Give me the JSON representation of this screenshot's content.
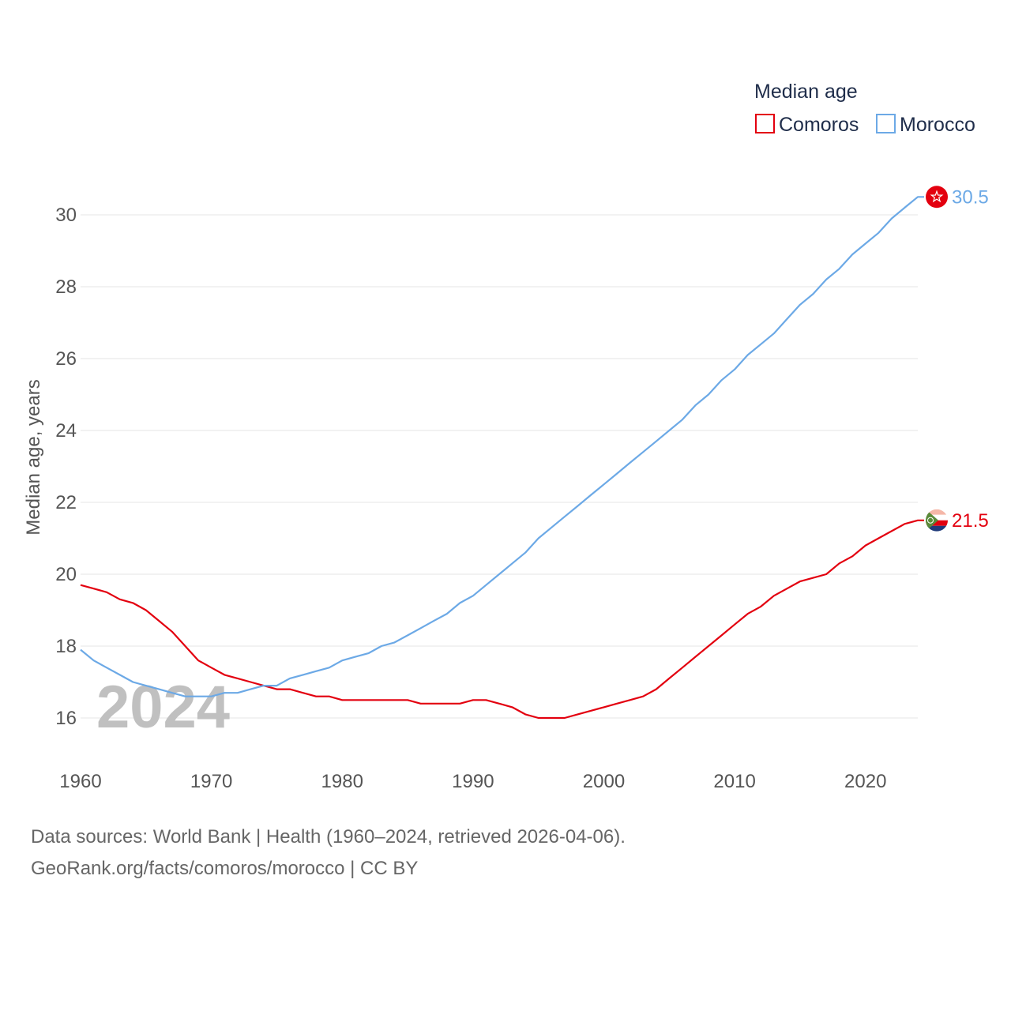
{
  "chart_data": {
    "type": "line",
    "legend_title": "Median age",
    "ylabel": "Median age, years",
    "xlabel": "",
    "xlim": [
      1960,
      2024
    ],
    "ylim": [
      15.2,
      30.9
    ],
    "x_ticks": [
      1960,
      1970,
      1980,
      1990,
      2000,
      2010,
      2020
    ],
    "y_ticks": [
      16,
      18,
      20,
      22,
      24,
      26,
      28,
      30
    ],
    "current_year": "2024",
    "grid": true,
    "legend_position": "top-right",
    "series": [
      {
        "name": "Comoros",
        "color": "#e3000f",
        "flag_icon": "comoros-flag-icon",
        "end_label": "21.5",
        "x": [
          1960,
          1961,
          1962,
          1963,
          1964,
          1965,
          1966,
          1967,
          1968,
          1969,
          1970,
          1971,
          1972,
          1973,
          1974,
          1975,
          1976,
          1977,
          1978,
          1979,
          1980,
          1981,
          1982,
          1983,
          1984,
          1985,
          1986,
          1987,
          1988,
          1989,
          1990,
          1991,
          1992,
          1993,
          1994,
          1995,
          1996,
          1997,
          1998,
          1999,
          2000,
          2001,
          2002,
          2003,
          2004,
          2005,
          2006,
          2007,
          2008,
          2009,
          2010,
          2011,
          2012,
          2013,
          2014,
          2015,
          2016,
          2017,
          2018,
          2019,
          2020,
          2021,
          2022,
          2023,
          2024
        ],
        "values": [
          19.7,
          19.6,
          19.5,
          19.3,
          19.2,
          19.0,
          18.7,
          18.4,
          18.0,
          17.6,
          17.4,
          17.2,
          17.1,
          17.0,
          16.9,
          16.8,
          16.8,
          16.7,
          16.6,
          16.6,
          16.5,
          16.5,
          16.5,
          16.5,
          16.5,
          16.5,
          16.4,
          16.4,
          16.4,
          16.4,
          16.5,
          16.5,
          16.4,
          16.3,
          16.1,
          16.0,
          16.0,
          16.0,
          16.1,
          16.2,
          16.3,
          16.4,
          16.5,
          16.6,
          16.8,
          17.1,
          17.4,
          17.7,
          18.0,
          18.3,
          18.6,
          18.9,
          19.1,
          19.4,
          19.6,
          19.8,
          19.9,
          20.0,
          20.3,
          20.5,
          20.8,
          21.0,
          21.2,
          21.4,
          21.5
        ]
      },
      {
        "name": "Morocco",
        "color": "#6ca9e6",
        "flag_icon": "morocco-flag-icon",
        "end_label": "30.5",
        "x": [
          1960,
          1961,
          1962,
          1963,
          1964,
          1965,
          1966,
          1967,
          1968,
          1969,
          1970,
          1971,
          1972,
          1973,
          1974,
          1975,
          1976,
          1977,
          1978,
          1979,
          1980,
          1981,
          1982,
          1983,
          1984,
          1985,
          1986,
          1987,
          1988,
          1989,
          1990,
          1991,
          1992,
          1993,
          1994,
          1995,
          1996,
          1997,
          1998,
          1999,
          2000,
          2001,
          2002,
          2003,
          2004,
          2005,
          2006,
          2007,
          2008,
          2009,
          2010,
          2011,
          2012,
          2013,
          2014,
          2015,
          2016,
          2017,
          2018,
          2019,
          2020,
          2021,
          2022,
          2023,
          2024
        ],
        "values": [
          17.9,
          17.6,
          17.4,
          17.2,
          17.0,
          16.9,
          16.8,
          16.7,
          16.6,
          16.6,
          16.6,
          16.7,
          16.7,
          16.8,
          16.9,
          16.9,
          17.1,
          17.2,
          17.3,
          17.4,
          17.6,
          17.7,
          17.8,
          18.0,
          18.1,
          18.3,
          18.5,
          18.7,
          18.9,
          19.2,
          19.4,
          19.7,
          20.0,
          20.3,
          20.6,
          21.0,
          21.3,
          21.6,
          21.9,
          22.2,
          22.5,
          22.8,
          23.1,
          23.4,
          23.7,
          24.0,
          24.3,
          24.7,
          25.0,
          25.4,
          25.7,
          26.1,
          26.4,
          26.7,
          27.1,
          27.5,
          27.8,
          28.2,
          28.5,
          28.9,
          29.2,
          29.5,
          29.9,
          30.2,
          30.5
        ]
      }
    ]
  },
  "footer": {
    "line1": "Data sources: World Bank | Health (1960–2024, retrieved 2026-04-06).",
    "line2": "GeoRank.org/facts/comoros/morocco | CC BY"
  }
}
